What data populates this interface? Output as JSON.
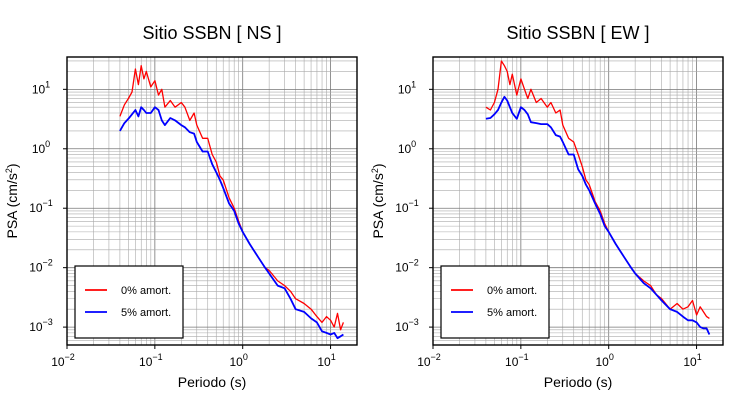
{
  "chart_data": [
    {
      "type": "line",
      "title": "Sitio SSBN [ NS ]",
      "xlabel": "Periodo (s)",
      "ylabel_main": "PSA (cm/s",
      "ylabel_sup": "2",
      "ylabel_close": ")",
      "xscale": "log",
      "yscale": "log",
      "xlim": [
        0.01,
        20
      ],
      "ylim": [
        0.0005,
        35
      ],
      "grid": true,
      "legend_position": "bottom-left",
      "xticks": [
        {
          "v": 0.01,
          "base": "10",
          "exp": "−2"
        },
        {
          "v": 0.1,
          "base": "10",
          "exp": "−1"
        },
        {
          "v": 1,
          "base": "10",
          "exp": "0"
        },
        {
          "v": 10,
          "base": "10",
          "exp": "1"
        }
      ],
      "yticks": [
        {
          "v": 0.001,
          "base": "10",
          "exp": "−3"
        },
        {
          "v": 0.01,
          "base": "10",
          "exp": "−2"
        },
        {
          "v": 0.1,
          "base": "10",
          "exp": "−1"
        },
        {
          "v": 1,
          "base": "10",
          "exp": "0"
        },
        {
          "v": 10,
          "base": "10",
          "exp": "1"
        }
      ],
      "series": [
        {
          "name": "0% amort.",
          "color": "#ff0000",
          "x": [
            0.04,
            0.045,
            0.05,
            0.055,
            0.06,
            0.065,
            0.07,
            0.075,
            0.08,
            0.09,
            0.1,
            0.11,
            0.12,
            0.13,
            0.15,
            0.17,
            0.2,
            0.22,
            0.25,
            0.28,
            0.3,
            0.35,
            0.4,
            0.45,
            0.5,
            0.55,
            0.6,
            0.7,
            0.8,
            0.9,
            1.0,
            1.2,
            1.5,
            1.8,
            2.0,
            2.5,
            3.0,
            3.5,
            4.0,
            5.0,
            6.0,
            7.0,
            8.0,
            9.0,
            10.0,
            11.0,
            12.0,
            13.0,
            14.0
          ],
          "y": [
            3.5,
            5.5,
            7.0,
            9.0,
            22.0,
            12.0,
            25.0,
            15.0,
            20.0,
            11.0,
            14.0,
            8.0,
            10.0,
            5.0,
            6.5,
            5.0,
            6.0,
            5.0,
            3.0,
            4.0,
            2.5,
            1.5,
            1.5,
            0.8,
            0.6,
            0.35,
            0.3,
            0.15,
            0.1,
            0.06,
            0.04,
            0.025,
            0.015,
            0.01,
            0.009,
            0.006,
            0.005,
            0.004,
            0.003,
            0.0025,
            0.002,
            0.0015,
            0.0012,
            0.0015,
            0.0013,
            0.001,
            0.0017,
            0.0009,
            0.0012
          ]
        },
        {
          "name": "5% amort.",
          "color": "#0000ff",
          "x": [
            0.04,
            0.045,
            0.05,
            0.055,
            0.06,
            0.065,
            0.07,
            0.075,
            0.08,
            0.09,
            0.1,
            0.11,
            0.12,
            0.13,
            0.15,
            0.17,
            0.2,
            0.22,
            0.25,
            0.28,
            0.3,
            0.35,
            0.4,
            0.45,
            0.5,
            0.55,
            0.6,
            0.7,
            0.8,
            0.9,
            1.0,
            1.2,
            1.5,
            1.8,
            2.0,
            2.5,
            3.0,
            3.5,
            4.0,
            5.0,
            6.0,
            7.0,
            8.0,
            9.0,
            10.0,
            11.0,
            12.0,
            13.0,
            14.0
          ],
          "y": [
            2.0,
            2.7,
            3.2,
            3.8,
            4.5,
            3.5,
            5.0,
            4.5,
            4.0,
            4.0,
            5.0,
            4.5,
            3.0,
            2.5,
            3.3,
            3.0,
            2.5,
            2.3,
            1.9,
            1.8,
            1.3,
            0.9,
            0.9,
            0.55,
            0.4,
            0.3,
            0.22,
            0.12,
            0.09,
            0.055,
            0.04,
            0.025,
            0.015,
            0.01,
            0.008,
            0.005,
            0.0045,
            0.003,
            0.002,
            0.0018,
            0.0014,
            0.0012,
            0.00085,
            0.0008,
            0.00075,
            0.0008,
            0.00065,
            0.0007,
            0.00075
          ]
        }
      ]
    },
    {
      "type": "line",
      "title": "Sitio SSBN [ EW ]",
      "xlabel": "Periodo (s)",
      "ylabel_main": "PSA (cm/s",
      "ylabel_sup": "2",
      "ylabel_close": ")",
      "xscale": "log",
      "yscale": "log",
      "xlim": [
        0.01,
        20
      ],
      "ylim": [
        0.0005,
        35
      ],
      "grid": true,
      "legend_position": "bottom-left",
      "xticks": [
        {
          "v": 0.01,
          "base": "10",
          "exp": "−2"
        },
        {
          "v": 0.1,
          "base": "10",
          "exp": "−1"
        },
        {
          "v": 1,
          "base": "10",
          "exp": "0"
        },
        {
          "v": 10,
          "base": "10",
          "exp": "1"
        }
      ],
      "yticks": [
        {
          "v": 0.001,
          "base": "10",
          "exp": "−3"
        },
        {
          "v": 0.01,
          "base": "10",
          "exp": "−2"
        },
        {
          "v": 0.1,
          "base": "10",
          "exp": "−1"
        },
        {
          "v": 1,
          "base": "10",
          "exp": "0"
        },
        {
          "v": 10,
          "base": "10",
          "exp": "1"
        }
      ],
      "series": [
        {
          "name": "0% amort.",
          "color": "#ff0000",
          "x": [
            0.04,
            0.045,
            0.05,
            0.055,
            0.06,
            0.065,
            0.07,
            0.075,
            0.08,
            0.09,
            0.1,
            0.11,
            0.12,
            0.13,
            0.15,
            0.17,
            0.2,
            0.22,
            0.25,
            0.28,
            0.3,
            0.35,
            0.4,
            0.45,
            0.5,
            0.55,
            0.6,
            0.7,
            0.8,
            0.9,
            1.0,
            1.2,
            1.5,
            1.8,
            2.0,
            2.5,
            3.0,
            3.5,
            4.0,
            5.0,
            6.0,
            7.0,
            8.0,
            9.0,
            10.0,
            11.0,
            12.0,
            13.0,
            14.0
          ],
          "y": [
            5.0,
            4.5,
            6.0,
            10.0,
            30.0,
            25.0,
            20.0,
            12.0,
            18.0,
            8.0,
            15.0,
            10.0,
            7.0,
            10.0,
            6.0,
            7.0,
            5.0,
            6.0,
            4.0,
            4.5,
            2.5,
            1.5,
            1.3,
            0.8,
            0.5,
            0.3,
            0.25,
            0.13,
            0.09,
            0.055,
            0.04,
            0.025,
            0.015,
            0.01,
            0.008,
            0.006,
            0.005,
            0.0035,
            0.003,
            0.002,
            0.0025,
            0.002,
            0.0022,
            0.0028,
            0.0016,
            0.0022,
            0.0018,
            0.0015,
            0.0014
          ]
        },
        {
          "name": "5% amort.",
          "color": "#0000ff",
          "x": [
            0.04,
            0.045,
            0.05,
            0.055,
            0.06,
            0.065,
            0.07,
            0.075,
            0.08,
            0.09,
            0.1,
            0.11,
            0.12,
            0.13,
            0.15,
            0.17,
            0.2,
            0.22,
            0.25,
            0.28,
            0.3,
            0.35,
            0.4,
            0.45,
            0.5,
            0.55,
            0.6,
            0.7,
            0.8,
            0.9,
            1.0,
            1.2,
            1.5,
            1.8,
            2.0,
            2.5,
            3.0,
            3.5,
            4.0,
            5.0,
            6.0,
            7.0,
            8.0,
            9.0,
            10.0,
            11.0,
            12.0,
            13.0,
            14.0
          ],
          "y": [
            3.2,
            3.3,
            3.8,
            4.5,
            6.0,
            7.5,
            6.5,
            5.0,
            4.0,
            3.2,
            5.0,
            4.5,
            3.8,
            2.8,
            2.7,
            2.6,
            2.6,
            2.3,
            1.7,
            1.6,
            1.3,
            0.8,
            0.8,
            0.45,
            0.35,
            0.25,
            0.2,
            0.12,
            0.08,
            0.05,
            0.04,
            0.025,
            0.015,
            0.01,
            0.008,
            0.0055,
            0.0045,
            0.0035,
            0.0028,
            0.002,
            0.0018,
            0.0015,
            0.0013,
            0.0013,
            0.0012,
            0.001,
            0.00095,
            0.00095,
            0.00075
          ]
        }
      ]
    }
  ]
}
